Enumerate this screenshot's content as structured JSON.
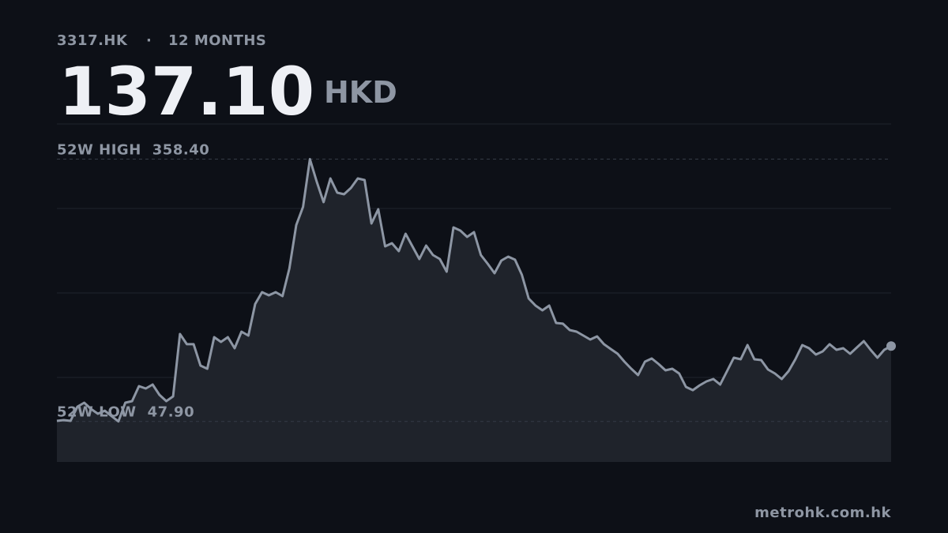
{
  "chart_data": {
    "type": "line",
    "ticker": "3317.HK",
    "period": "12 MONTHS",
    "price": "137.10",
    "currency": "HKD",
    "high_label": "52W HIGH",
    "high": {
      "value": 358.4,
      "label": "358.40"
    },
    "low_label": "52W LOW",
    "low": {
      "value": 47.9,
      "label": "47.90"
    },
    "source": "metrohk.com.hk",
    "color": "#8d96a4",
    "ylim": [
      0,
      400
    ],
    "yticks": [
      100,
      200,
      300
    ],
    "grid": true,
    "values": [
      48.6,
      49.5,
      48.6,
      65.4,
      70.1,
      62.6,
      57.0,
      60.7,
      54.2,
      47.9,
      70.1,
      72.0,
      89.7,
      86.9,
      91.6,
      79.4,
      72.0,
      77.6,
      151.4,
      139.3,
      139.3,
      114.0,
      110.3,
      147.7,
      142.1,
      147.7,
      134.6,
      154.2,
      149.5,
      186.9,
      200.9,
      197.2,
      200.9,
      196.3,
      229.0,
      280.4,
      301.9,
      358.4,
      331.8,
      307.5,
      335.5,
      318.7,
      316.8,
      324.3,
      335.5,
      333.6,
      282.2,
      299.1,
      255.1,
      258.9,
      249.5,
      270.1,
      255.1,
      240.2,
      256.1,
      244.9,
      240.2,
      225.2,
      277.6,
      273.8,
      266.4,
      272.0,
      244.9,
      234.6,
      223.4,
      238.3,
      243.0,
      239.3,
      221.5,
      193.5,
      185.0,
      179.4,
      185.0,
      164.5,
      163.6,
      156.1,
      154.2,
      149.5,
      144.9,
      148.6,
      139.3,
      133.6,
      128.0,
      118.7,
      110.3,
      102.8,
      118.7,
      122.4,
      115.9,
      108.4,
      110.3,
      104.7,
      88.8,
      85.0,
      90.7,
      95.3,
      98.1,
      91.6,
      107.5,
      123.4,
      121.5,
      138.3,
      121.5,
      120.6,
      109.3,
      104.7,
      98.1,
      107.5,
      121.5,
      138.3,
      134.6,
      127.1,
      130.8,
      139.3,
      132.7,
      134.6,
      128.0,
      135.5,
      143.0,
      132.7,
      123.4,
      132.7,
      137.1
    ]
  }
}
